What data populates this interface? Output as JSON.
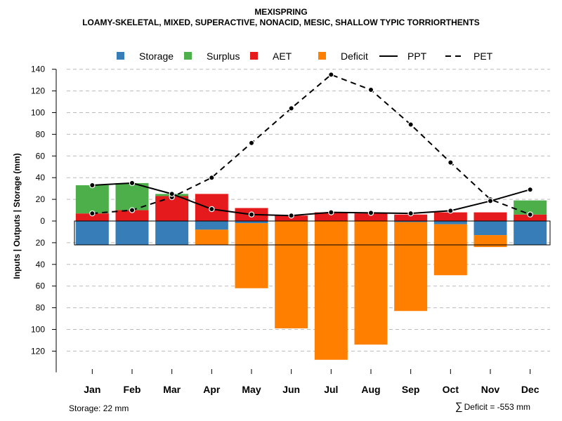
{
  "colors": {
    "storage": "#377eb8",
    "surplus": "#4daf4a",
    "aet": "#e41a1c",
    "deficit": "#ff7f00",
    "line": "#000000",
    "grid": "#bbbbbb"
  },
  "chart_data": {
    "type": "bar",
    "title": "MEXISPRING",
    "subtitle": "LOAMY-SKELETAL, MIXED, SUPERACTIVE, NONACID, MESIC, SHALLOW TYPIC TORRIORTHENTS",
    "ylabel": "Inputs | Outputs | Storage    (mm)",
    "xlabel": "",
    "ylim": [
      -137,
      140
    ],
    "yticks": [
      140,
      120,
      100,
      80,
      60,
      40,
      20,
      0,
      -20,
      -40,
      -60,
      -80,
      -100,
      -120
    ],
    "ytick_labels": [
      "140",
      "120",
      "100",
      "80",
      "60",
      "40",
      "20",
      "0",
      "20",
      "40",
      "60",
      "80",
      "100",
      "120"
    ],
    "categories": [
      "Jan",
      "Feb",
      "Mar",
      "Apr",
      "May",
      "Jun",
      "Jul",
      "Aug",
      "Sep",
      "Oct",
      "Nov",
      "Dec"
    ],
    "legend": [
      {
        "key": "storage",
        "label": "Storage",
        "kind": "box"
      },
      {
        "key": "surplus",
        "label": "Surplus",
        "kind": "box"
      },
      {
        "key": "aet",
        "label": "AET",
        "kind": "box"
      },
      {
        "key": "deficit",
        "label": "Deficit",
        "kind": "box"
      },
      {
        "key": "ppt",
        "label": "PPT",
        "kind": "solid"
      },
      {
        "key": "pet",
        "label": "PET",
        "kind": "dashed"
      }
    ],
    "series": [
      {
        "name": "AET",
        "values": [
          7,
          10,
          23,
          25,
          12,
          5,
          8,
          7,
          6,
          8,
          8,
          6
        ]
      },
      {
        "name": "Surplus",
        "values": [
          26,
          25,
          2,
          0,
          0,
          0,
          0,
          0,
          0,
          0,
          0,
          13
        ]
      },
      {
        "name": "Storage",
        "values": [
          22,
          22,
          22,
          8,
          2,
          0,
          0,
          0,
          1,
          3,
          13,
          22
        ]
      },
      {
        "name": "Deficit",
        "values": [
          0,
          0,
          0,
          14,
          60,
          99,
          128,
          114,
          82,
          47,
          11,
          0
        ]
      },
      {
        "name": "PPT",
        "values": [
          33,
          35,
          25,
          11,
          6,
          5,
          8,
          7.5,
          7,
          9.5,
          18.5,
          29
        ]
      },
      {
        "name": "PET",
        "values": [
          7,
          10,
          22,
          40,
          72,
          104,
          135,
          121,
          89,
          54,
          20,
          6
        ]
      }
    ],
    "storage_capacity": 22
  },
  "notes": {
    "storage": "Storage: 22 mm",
    "sigma": "∑",
    "deficit": "Deficit = -553 mm"
  }
}
